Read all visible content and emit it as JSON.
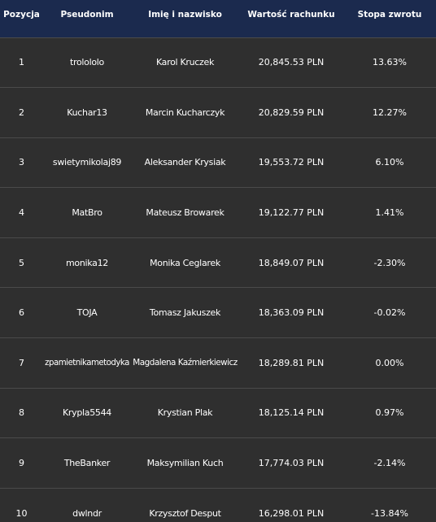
{
  "header": {
    "position": "Pozycja",
    "nickname": "Pseudonim",
    "fullname": "Imię i nazwisko",
    "value": "Wartość rachunku",
    "return": "Stopa zwrotu"
  },
  "rows": [
    {
      "pos": "1",
      "nick": "trolololo",
      "name": "Karol Kruczek",
      "value": "20,845.53 PLN",
      "ret": "13.63%"
    },
    {
      "pos": "2",
      "nick": "Kuchar13",
      "name": "Marcin Kucharczyk",
      "value": "20,829.59 PLN",
      "ret": "12.27%"
    },
    {
      "pos": "3",
      "nick": "swietymikolaj89",
      "name": "Aleksander Krysiak",
      "value": "19,553.72 PLN",
      "ret": "6.10%"
    },
    {
      "pos": "4",
      "nick": "MatBro",
      "name": "Mateusz Browarek",
      "value": "19,122.77 PLN",
      "ret": "1.41%"
    },
    {
      "pos": "5",
      "nick": "monika12",
      "name": "Monika Ceglarek",
      "value": "18,849.07 PLN",
      "ret": "-2.30%"
    },
    {
      "pos": "6",
      "nick": "TOJA",
      "name": "Tomasz Jakuszek",
      "value": "18,363.09 PLN",
      "ret": "-0.02%"
    },
    {
      "pos": "7",
      "nick": "zpamietnikametodyka",
      "name": "Magdalena Kaźmierkiewicz",
      "value": "18,289.81 PLN",
      "ret": "0.00%"
    },
    {
      "pos": "8",
      "nick": "Krypla5544",
      "name": "Krystian Plak",
      "value": "18,125.14 PLN",
      "ret": "0.97%"
    },
    {
      "pos": "9",
      "nick": "TheBanker",
      "name": "Maksymilian Kuch",
      "value": "17,774.03 PLN",
      "ret": "-2.14%"
    },
    {
      "pos": "10",
      "nick": "dwlndr",
      "name": "Krzysztof Desput",
      "value": "16,298.01 PLN",
      "ret": "-13.84%"
    }
  ]
}
